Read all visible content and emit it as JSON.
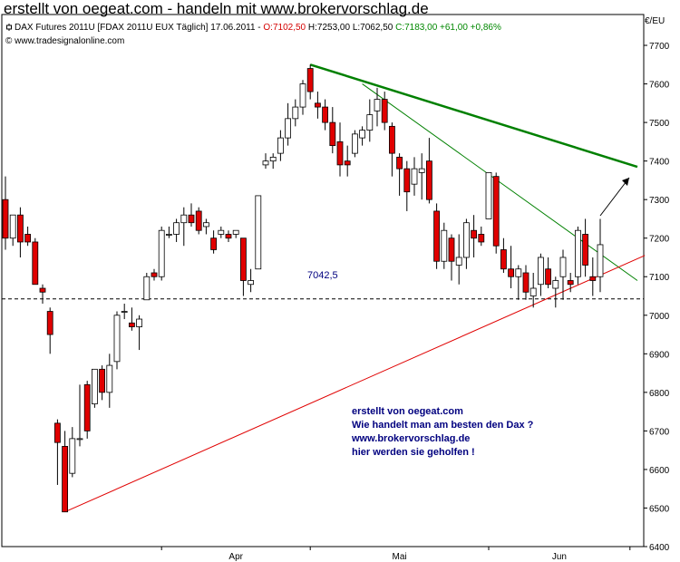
{
  "header": {
    "title": "erstellt von oegeat.com - handeln mit www.brokervorschlag.de"
  },
  "chart_info": {
    "instrument": "DAX Futures 2011U [FDAX 2011U EUX  Täglich] 17.06.2011 - ",
    "open": "O:7102,50",
    "high_low": " H:7253,00 L:7062,50 ",
    "close_change": "C:7183,00 +61,00 +0,86%",
    "copyright": "© www.tradesignalonline.com"
  },
  "colors": {
    "up_candle": "#ffffff",
    "down_candle": "#e00000",
    "trend_thick": "#008000",
    "trend_thin": "#008000",
    "support": "#e00000"
  },
  "annotation": {
    "lines": [
      "erstellt von oegeat.com",
      "Wie handelt man am besten den Dax ?",
      "www.brokervorschlag.de",
      "hier werden sie geholfen !"
    ]
  },
  "chart_data": {
    "type": "candlestick",
    "unit_label": "€/EU",
    "yticks": [
      6400,
      6500,
      6600,
      6700,
      6800,
      6900,
      7000,
      7100,
      7200,
      7300,
      7400,
      7500,
      7600,
      7700
    ],
    "ylim": [
      6400,
      7780
    ],
    "xticks": [
      "Apr",
      "Mai",
      "Jun"
    ],
    "level_line": {
      "value": 7042.5,
      "label": "7042,5"
    },
    "candles": [
      [
        7300,
        7360,
        7170,
        7200
      ],
      [
        7200,
        7260,
        7180,
        7260
      ],
      [
        7260,
        7280,
        7150,
        7190
      ],
      [
        7210,
        7230,
        7180,
        7190
      ],
      [
        7190,
        7200,
        7080,
        7080
      ],
      [
        7070,
        7080,
        7030,
        7060
      ],
      [
        7010,
        7020,
        6900,
        6950
      ],
      [
        6720,
        6730,
        6560,
        6670
      ],
      [
        6660,
        6700,
        6490,
        6490
      ],
      [
        6590,
        6710,
        6580,
        6680
      ],
      [
        6680,
        6820,
        6660,
        6680
      ],
      [
        6820,
        6830,
        6680,
        6700
      ],
      [
        6770,
        6860,
        6760,
        6860
      ],
      [
        6860,
        6870,
        6780,
        6800
      ],
      [
        6800,
        6900,
        6760,
        6870
      ],
      [
        6880,
        7010,
        6860,
        7000
      ],
      [
        7010,
        7030,
        6990,
        7010
      ],
      [
        6980,
        7020,
        6960,
        6970
      ],
      [
        6970,
        7000,
        6910,
        6990
      ],
      [
        7040,
        7110,
        7040,
        7100
      ],
      [
        7110,
        7120,
        7090,
        7100
      ],
      [
        7100,
        7230,
        7090,
        7220
      ],
      [
        7210,
        7230,
        7200,
        7210
      ],
      [
        7210,
        7250,
        7190,
        7240
      ],
      [
        7240,
        7280,
        7180,
        7260
      ],
      [
        7260,
        7290,
        7230,
        7240
      ],
      [
        7270,
        7280,
        7210,
        7220
      ],
      [
        7230,
        7250,
        7210,
        7240
      ],
      [
        7200,
        7220,
        7160,
        7170
      ],
      [
        7210,
        7230,
        7200,
        7220
      ],
      [
        7210,
        7220,
        7190,
        7200
      ],
      [
        7210,
        7220,
        7200,
        7220
      ],
      [
        7200,
        7200,
        7050,
        7090
      ],
      [
        7080,
        7120,
        7060,
        7090
      ],
      [
        7120,
        7310,
        7120,
        7310
      ],
      [
        7390,
        7420,
        7380,
        7400
      ],
      [
        7400,
        7420,
        7380,
        7410
      ],
      [
        7420,
        7480,
        7400,
        7460
      ],
      [
        7460,
        7550,
        7440,
        7510
      ],
      [
        7510,
        7560,
        7490,
        7540
      ],
      [
        7540,
        7610,
        7520,
        7600
      ],
      [
        7640,
        7650,
        7560,
        7580
      ],
      [
        7550,
        7580,
        7510,
        7540
      ],
      [
        7540,
        7560,
        7480,
        7500
      ],
      [
        7500,
        7540,
        7420,
        7440
      ],
      [
        7450,
        7500,
        7360,
        7390
      ],
      [
        7400,
        7440,
        7360,
        7390
      ],
      [
        7420,
        7480,
        7410,
        7470
      ],
      [
        7460,
        7490,
        7440,
        7480
      ],
      [
        7480,
        7560,
        7450,
        7520
      ],
      [
        7530,
        7590,
        7490,
        7560
      ],
      [
        7560,
        7580,
        7480,
        7500
      ],
      [
        7490,
        7500,
        7360,
        7420
      ],
      [
        7410,
        7420,
        7310,
        7380
      ],
      [
        7380,
        7400,
        7270,
        7320
      ],
      [
        7340,
        7410,
        7310,
        7380
      ],
      [
        7370,
        7420,
        7300,
        7380
      ],
      [
        7400,
        7460,
        7290,
        7300
      ],
      [
        7270,
        7290,
        7120,
        7140
      ],
      [
        7140,
        7240,
        7120,
        7220
      ],
      [
        7200,
        7210,
        7090,
        7140
      ],
      [
        7130,
        7210,
        7080,
        7150
      ],
      [
        7150,
        7250,
        7120,
        7240
      ],
      [
        7220,
        7260,
        7150,
        7200
      ],
      [
        7210,
        7230,
        7180,
        7190
      ],
      [
        7250,
        7370,
        7250,
        7370
      ],
      [
        7360,
        7370,
        7160,
        7180
      ],
      [
        7170,
        7200,
        7110,
        7120
      ],
      [
        7120,
        7180,
        7070,
        7100
      ],
      [
        7100,
        7130,
        7040,
        7120
      ],
      [
        7110,
        7130,
        7040,
        7060
      ],
      [
        7050,
        7110,
        7020,
        7070
      ],
      [
        7080,
        7160,
        7050,
        7150
      ],
      [
        7120,
        7150,
        7070,
        7080
      ],
      [
        7070,
        7100,
        7020,
        7090
      ],
      [
        7100,
        7170,
        7040,
        7150
      ],
      [
        7090,
        7110,
        7060,
        7080
      ],
      [
        7100,
        7230,
        7080,
        7220
      ],
      [
        7210,
        7250,
        7100,
        7130
      ],
      [
        7100,
        7150,
        7050,
        7090
      ],
      [
        7100,
        7250,
        7060,
        7183
      ]
    ],
    "trendlines": [
      {
        "role": "resistance-main",
        "from": [
          41,
          7650
        ],
        "to": [
          85,
          7385
        ]
      },
      {
        "role": "resistance-short",
        "from": [
          48,
          7600
        ],
        "to": [
          85,
          7090
        ]
      },
      {
        "role": "support",
        "from": [
          8,
          6490
        ],
        "to": [
          86,
          7155
        ]
      }
    ]
  }
}
